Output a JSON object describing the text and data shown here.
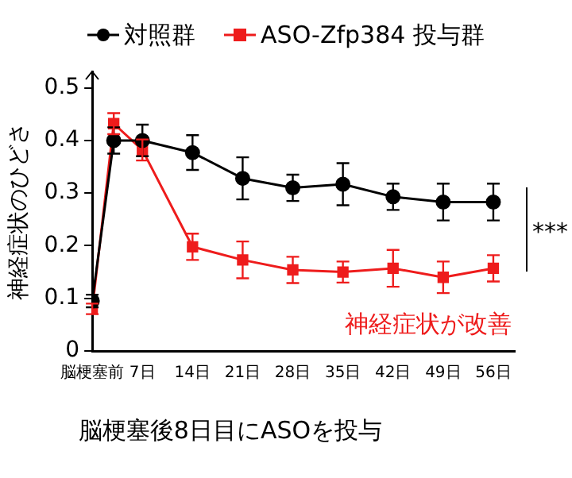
{
  "chart_data": {
    "type": "line",
    "ylabel": "神経症状のひどさ",
    "x": [
      0,
      3,
      7,
      14,
      21,
      28,
      35,
      42,
      49,
      56
    ],
    "xlim": [
      0,
      59
    ],
    "xticks": [
      {
        "value": 0,
        "label": "脳梗塞前"
      },
      {
        "value": 7,
        "label": "7日"
      },
      {
        "value": 14,
        "label": "14日"
      },
      {
        "value": 21,
        "label": "21日"
      },
      {
        "value": 28,
        "label": "28日"
      },
      {
        "value": 35,
        "label": "35日"
      },
      {
        "value": 42,
        "label": "42日"
      },
      {
        "value": 49,
        "label": "49日"
      },
      {
        "value": 56,
        "label": "56日"
      }
    ],
    "ylim": [
      0,
      0.53
    ],
    "yticks": [
      0,
      0.1,
      0.2,
      0.3,
      0.4,
      0.5
    ],
    "series": [
      {
        "name": "対照群",
        "color": "#000000",
        "marker": "circle",
        "values": [
          0.095,
          0.4,
          0.4,
          0.377,
          0.328,
          0.31,
          0.317,
          0.293,
          0.283,
          0.283
        ],
        "errors": [
          0.012,
          0.025,
          0.03,
          0.033,
          0.04,
          0.025,
          0.04,
          0.025,
          0.035,
          0.035
        ]
      },
      {
        "name": "ASO-Zfp384 投与群",
        "color": "#ee1c1c",
        "marker": "square",
        "values": [
          0.08,
          0.432,
          0.382,
          0.198,
          0.173,
          0.154,
          0.15,
          0.157,
          0.14,
          0.157
        ],
        "errors": [
          0.01,
          0.02,
          0.02,
          0.025,
          0.035,
          0.025,
          0.02,
          0.035,
          0.03,
          0.025
        ]
      }
    ],
    "legend": "top",
    "grid": false,
    "annotations": [
      "神経症状が改善",
      "***",
      "脳梗塞後8日目にASOを投与"
    ]
  }
}
